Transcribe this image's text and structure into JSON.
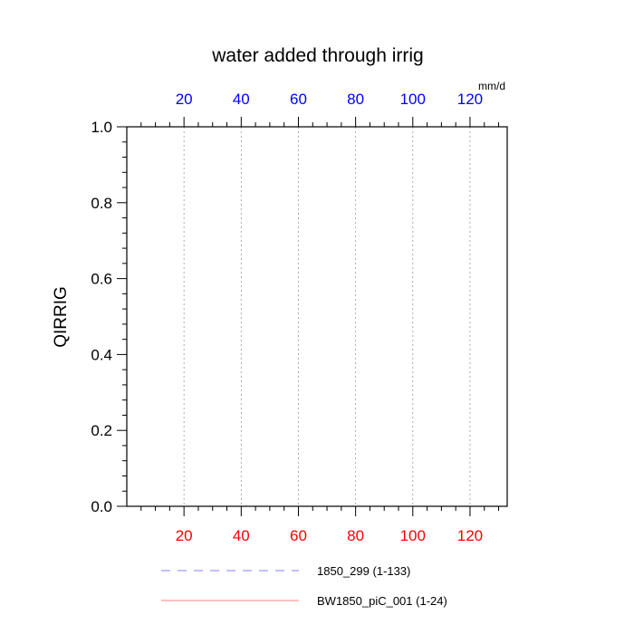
{
  "chart_data": {
    "type": "line",
    "title": "water added through irrig",
    "ylabel": "QIRRIG",
    "units": "mm/d",
    "xlim": [
      0,
      133
    ],
    "ylim": [
      0,
      1.0
    ],
    "grid": true,
    "bottom_axis": {
      "ticks": [
        20,
        40,
        60,
        80,
        100,
        120
      ],
      "labels": [
        "20",
        "40",
        "60",
        "80",
        "100",
        "120"
      ],
      "label_color": "#ff0000"
    },
    "top_axis": {
      "ticks": [
        20,
        40,
        60,
        80,
        100,
        120
      ],
      "labels": [
        "20",
        "40",
        "60",
        "80",
        "100",
        "120"
      ],
      "label_color": "#0000ff"
    },
    "y_ticks": [
      0.0,
      0.2,
      0.4,
      0.6,
      0.8,
      1.0
    ],
    "y_tick_labels": [
      "0.0",
      "0.2",
      "0.4",
      "0.6",
      "0.8",
      "1.0"
    ],
    "legend_position": "bottom",
    "series": [
      {
        "name": "1850_299 (1-133)",
        "color": "#8080ff",
        "style": "dashed",
        "x": [
          1,
          133
        ],
        "y": [
          0,
          0
        ]
      },
      {
        "name": "BW1850_piC_001 (1-24)",
        "color": "#ff8080",
        "style": "solid",
        "x": [
          1,
          24
        ],
        "y": [
          0,
          0
        ]
      }
    ]
  }
}
